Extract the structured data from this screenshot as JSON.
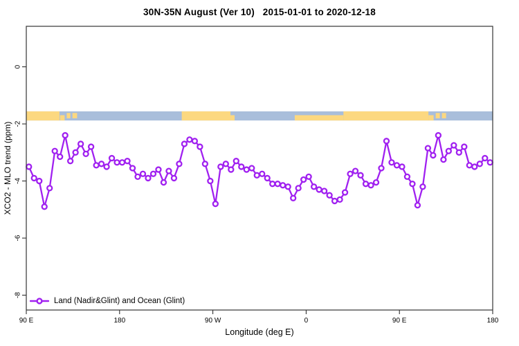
{
  "header": {
    "title": "30N-35N August (Ver 10)   2015-01-01 to 2020-12-18"
  },
  "legend": {
    "label": "Land (Nadir&Glint) and Ocean (Glint)"
  },
  "colors": {
    "series": "#A020F0",
    "marker_fill": "#FFFFFF",
    "land": "#FCD880",
    "ocean": "#A9BEDB",
    "axis": "#1a1a1a",
    "box": "#333333",
    "background": "#FFFFFF"
  },
  "chart_data": {
    "type": "line",
    "title": "30N-35N August (Ver 10)   2015-01-01 to 2020-12-18",
    "xlabel": "Longitude (deg E)",
    "ylabel": "XCO2 - MLO trend (ppm)",
    "xlim": [
      90,
      540
    ],
    "ylim": [
      -8.52,
      1.42
    ],
    "grid": false,
    "legend_position": "bottom-left",
    "x_ticks": [
      {
        "lon": 90,
        "label": "90 E"
      },
      {
        "lon": 180,
        "label": "180"
      },
      {
        "lon": 270,
        "label": "90 W"
      },
      {
        "lon": 360,
        "label": "0"
      },
      {
        "lon": 450,
        "label": "90 E"
      },
      {
        "lon": 540,
        "label": "180"
      }
    ],
    "y_ticks": [
      {
        "value": 0,
        "label": "0"
      },
      {
        "value": -2,
        "label": "-2"
      },
      {
        "value": -4,
        "label": "-4"
      },
      {
        "value": -6,
        "label": "-6"
      },
      {
        "value": -8,
        "label": "-8"
      }
    ],
    "series": [
      {
        "name": "Land (Nadir&Glint) and Ocean (Glint)",
        "marker": "open-circle",
        "color": "#A020F0",
        "x": [
          92.5,
          97.5,
          102.5,
          107.5,
          112.5,
          117.5,
          122.5,
          127.5,
          132.5,
          137.5,
          142.5,
          147.5,
          152.5,
          157.5,
          162.5,
          167.5,
          172.5,
          177.5,
          182.5,
          187.5,
          192.5,
          197.5,
          202.5,
          207.5,
          212.5,
          217.5,
          222.5,
          227.5,
          232.5,
          237.5,
          242.5,
          247.5,
          252.5,
          257.5,
          262.5,
          267.5,
          272.5,
          277.5,
          282.5,
          287.5,
          292.5,
          297.5,
          302.5,
          307.5,
          312.5,
          317.5,
          322.5,
          327.5,
          332.5,
          337.5,
          342.5,
          347.5,
          352.5,
          357.5,
          362.5,
          367.5,
          372.5,
          377.5,
          382.5,
          387.5,
          392.5,
          397.5,
          402.5,
          407.5,
          412.5,
          417.5,
          422.5,
          427.5,
          432.5,
          437.5,
          442.5,
          447.5,
          452.5,
          457.5,
          462.5,
          467.5,
          472.5,
          477.5,
          482.5,
          487.5,
          492.5,
          497.5,
          502.5,
          507.5,
          512.5,
          517.5,
          522.5,
          527.5,
          532.5,
          537.5
        ],
        "values": [
          -3.5,
          -3.9,
          -4.0,
          -4.9,
          -4.25,
          -2.95,
          -3.15,
          -2.4,
          -3.3,
          -3.0,
          -2.7,
          -3.05,
          -2.8,
          -3.45,
          -3.4,
          -3.5,
          -3.2,
          -3.35,
          -3.35,
          -3.3,
          -3.55,
          -3.85,
          -3.75,
          -3.9,
          -3.75,
          -3.6,
          -4.05,
          -3.65,
          -3.9,
          -3.4,
          -2.7,
          -2.55,
          -2.6,
          -2.8,
          -3.4,
          -4.0,
          -4.8,
          -3.5,
          -3.4,
          -3.6,
          -3.3,
          -3.5,
          -3.6,
          -3.55,
          -3.8,
          -3.75,
          -3.9,
          -4.1,
          -4.1,
          -4.15,
          -4.2,
          -4.6,
          -4.25,
          -3.95,
          -3.85,
          -4.2,
          -4.3,
          -4.35,
          -4.5,
          -4.7,
          -4.65,
          -4.4,
          -3.75,
          -3.65,
          -3.8,
          -4.1,
          -4.15,
          -4.05,
          -3.55,
          -2.6,
          -3.35,
          -3.45,
          -3.5,
          -3.85,
          -4.1,
          -4.85,
          -4.2,
          -2.85,
          -3.1,
          -2.4,
          -3.25,
          -2.95,
          -2.75,
          -3.0,
          -2.8,
          -3.45,
          -3.5,
          -3.4,
          -3.2,
          -3.35
        ]
      }
    ],
    "map_strip": {
      "description": "world-map band for latitude 30N-35N (land vs ocean)",
      "value_top": -1.56,
      "value_bottom": -1.88,
      "ocean_color": "#A9BEDB",
      "land_color": "#FCD880",
      "land_segments": [
        {
          "from": 90,
          "to": 122,
          "part": "full"
        },
        {
          "from": 122.5,
          "to": 127,
          "part": "bottom"
        },
        {
          "from": 129,
          "to": 132.5,
          "part": "mid"
        },
        {
          "from": 134.5,
          "to": 139,
          "part": "mid"
        },
        {
          "from": 240,
          "to": 287,
          "part": "full"
        },
        {
          "from": 287,
          "to": 291,
          "part": "bottom"
        },
        {
          "from": 349,
          "to": 396,
          "part": "bottom"
        },
        {
          "from": 396,
          "to": 478,
          "part": "full"
        },
        {
          "from": 478,
          "to": 483,
          "part": "bottom"
        },
        {
          "from": 485,
          "to": 489,
          "part": "mid"
        },
        {
          "from": 491,
          "to": 495,
          "part": "mid"
        }
      ]
    }
  }
}
